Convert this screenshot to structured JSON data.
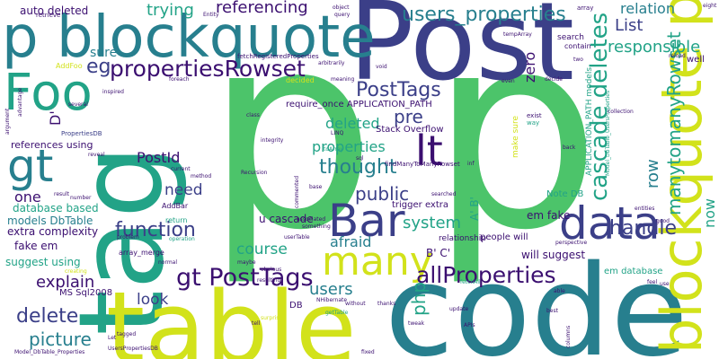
{
  "words": [
    {
      "text": "p",
      "color": "#4cc46a"
    },
    {
      "text": "p",
      "color": "#4cc46a"
    },
    {
      "text": "Post",
      "color": "#3b3f88"
    },
    {
      "text": "tag",
      "color": "#22a387"
    },
    {
      "text": "code",
      "color": "#277f8e"
    },
    {
      "text": "table",
      "color": "#d2e21b"
    },
    {
      "text": "blockquote p",
      "color": "#d2e21b"
    },
    {
      "text": "p blockquote",
      "color": "#277f8e"
    },
    {
      "text": "Foo",
      "color": "#22a387"
    },
    {
      "text": "gt",
      "color": "#277f8e"
    },
    {
      "text": "Bar",
      "color": "#3b3f88"
    },
    {
      "text": "data",
      "color": "#3b3f88"
    },
    {
      "text": "many",
      "color": "#d2e21b"
    },
    {
      "text": "lt",
      "color": "#3b0f70"
    },
    {
      "text": "gt PostTags",
      "color": "#3b0f70"
    },
    {
      "text": "propertiesRowset",
      "color": "#3b0f70"
    },
    {
      "text": "cascade deletes",
      "color": "#22a387"
    },
    {
      "text": "allProperties",
      "color": "#3b0f70"
    },
    {
      "text": "users_properties",
      "color": "#277f8e"
    },
    {
      "text": "PostTags",
      "color": "#3b3f88"
    },
    {
      "text": "thought",
      "color": "#277f8e"
    },
    {
      "text": "function",
      "color": "#3b3f88"
    },
    {
      "text": "delete",
      "color": "#3b3f88"
    },
    {
      "text": "picture",
      "color": "#277f8e"
    },
    {
      "text": "handle",
      "color": "#3b3f88"
    },
    {
      "text": "responsible",
      "color": "#22a387"
    },
    {
      "text": "manytomanyRowset",
      "color": "#22a387"
    },
    {
      "text": "system",
      "color": "#22a387"
    },
    {
      "text": "public",
      "color": "#3b3f88"
    },
    {
      "text": "pre",
      "color": "#3b3f88"
    },
    {
      "text": "referencing",
      "color": "#3b0f70"
    },
    {
      "text": "trying",
      "color": "#22a387"
    },
    {
      "text": "need",
      "color": "#3b3f88"
    },
    {
      "text": "course",
      "color": "#22a387"
    },
    {
      "text": "afraid",
      "color": "#277f8e"
    },
    {
      "text": "explain",
      "color": "#3b0f70"
    },
    {
      "text": "look",
      "color": "#3b3f88"
    },
    {
      "text": "users",
      "color": "#277f8e"
    },
    {
      "text": "List",
      "color": "#3b3f88"
    },
    {
      "text": "relation",
      "color": "#277f8e"
    },
    {
      "text": "deleted",
      "color": "#22a387"
    },
    {
      "text": "properties",
      "color": "#22a387"
    },
    {
      "text": "eg",
      "color": "#3b3f88"
    },
    {
      "text": "sure",
      "color": "#277f8e"
    },
    {
      "text": "PostId",
      "color": "#3b0f70"
    },
    {
      "text": "row",
      "color": "#277f8e"
    },
    {
      "text": "one",
      "color": "#3b0f70"
    },
    {
      "text": "now",
      "color": "#22a387"
    },
    {
      "text": "php",
      "color": "#22a387"
    },
    {
      "text": "zero",
      "color": "#3b0f70"
    },
    {
      "text": "u cascade",
      "color": "#3b0f70"
    },
    {
      "text": "A' B'",
      "color": "#22a387"
    },
    {
      "text": "B' C'",
      "color": "#3b0f70"
    },
    {
      "text": "will suggest",
      "color": "#3b0f70"
    },
    {
      "text": "em fake",
      "color": "#3b0f70"
    },
    {
      "text": "D'",
      "color": "#3b0f70"
    },
    {
      "text": "auto deleted",
      "color": "#3b0f70"
    },
    {
      "text": "references using",
      "color": "#3b0f70"
    },
    {
      "text": "models DbTable",
      "color": "#277f8e"
    },
    {
      "text": "extra complexity",
      "color": "#3b0f70"
    },
    {
      "text": "database based",
      "color": "#22a387"
    },
    {
      "text": "fake em",
      "color": "#3b0f70"
    },
    {
      "text": "suggest using",
      "color": "#22a387"
    },
    {
      "text": "MS Sql2008",
      "color": "#3b0f70"
    },
    {
      "text": "require_once APPLICATION_PATH",
      "color": "#3b0f70"
    },
    {
      "text": "Stack Overflow",
      "color": "#3b0f70"
    },
    {
      "text": "trigger extra",
      "color": "#3b0f70"
    },
    {
      "text": "people will",
      "color": "#3b0f70"
    },
    {
      "text": "em database",
      "color": "#22a387"
    },
    {
      "text": "DB",
      "color": "#3b0f70"
    },
    {
      "text": "Note DB",
      "color": "#22a387"
    },
    {
      "text": "relationship",
      "color": "#3b0f70"
    },
    {
      "text": "APPLICATION_PATH models",
      "color": "#22a387"
    },
    {
      "text": "make sure",
      "color": "#d2e21b"
    },
    {
      "text": "search",
      "color": "#3b0f70"
    },
    {
      "text": "contain",
      "color": "#3b0f70"
    },
    {
      "text": "well",
      "color": "#3b0f70"
    },
    {
      "text": "AddBar",
      "color": "#3b0f70"
    },
    {
      "text": "return",
      "color": "#22a387"
    },
    {
      "text": "array_merge",
      "color": "#3b0f70"
    },
    {
      "text": "PropertiesDB",
      "color": "#3b3f88"
    },
    {
      "text": "retrieve",
      "color": "#3b0f70"
    },
    {
      "text": "AddFoo",
      "color": "#d2e21b"
    },
    {
      "text": "foreach",
      "color": "#3b0f70"
    },
    {
      "text": "fetchRegisteredProperties",
      "color": "#3b0f70"
    },
    {
      "text": "tempArray",
      "color": "#3b0f70"
    },
    {
      "text": "findManyToManyRowset",
      "color": "#3b0f70"
    },
    {
      "text": "toArray",
      "color": "#22a387"
    },
    {
      "text": "Recursion",
      "color": "#3b0f70"
    },
    {
      "text": "userTable",
      "color": "#3b0f70"
    },
    {
      "text": "getTable",
      "color": "#22a387"
    },
    {
      "text": "NHibernate",
      "color": "#3b0f70"
    },
    {
      "text": "fetchAll",
      "color": "#22a387"
    },
    {
      "text": "Model_DbTable_UsersProperties",
      "color": "#22a387"
    },
    {
      "text": "Model_DbTable_Properties",
      "color": "#3b0f70"
    },
    {
      "text": "UsersPropertiesDB",
      "color": "#3b0f70"
    },
    {
      "text": "entities",
      "color": "#3b0f70"
    },
    {
      "text": "LINQ",
      "color": "#3b0f70"
    },
    {
      "text": "decided",
      "color": "#d2e21b"
    },
    {
      "text": "void",
      "color": "#3b0f70"
    },
    {
      "text": "Entity",
      "color": "#3b0f70"
    },
    {
      "text": "exist",
      "color": "#3b0f70"
    },
    {
      "text": "way",
      "color": "#22a387"
    },
    {
      "text": "without",
      "color": "#3b0f70"
    },
    {
      "text": "surprise",
      "color": "#d2e21b"
    },
    {
      "text": "update",
      "color": "#3b0f70"
    },
    {
      "text": "inf",
      "color": "#3b0f70"
    },
    {
      "text": "arbitrarily",
      "color": "#3b0f70"
    },
    {
      "text": "class",
      "color": "#3b0f70"
    },
    {
      "text": "integrity",
      "color": "#3b0f70"
    },
    {
      "text": "perspective",
      "color": "#3b0f70"
    },
    {
      "text": "number",
      "color": "#3b0f70"
    },
    {
      "text": "result",
      "color": "#3b0f70"
    },
    {
      "text": "problem",
      "color": "#3b0f70"
    },
    {
      "text": "operation",
      "color": "#22a387"
    },
    {
      "text": "creating",
      "color": "#d2e21b"
    },
    {
      "text": "normal",
      "color": "#3b0f70"
    },
    {
      "text": "tell",
      "color": "#3b0f70"
    },
    {
      "text": "maybe",
      "color": "#3b0f70"
    },
    {
      "text": "thanks",
      "color": "#3b0f70"
    },
    {
      "text": "tweak",
      "color": "#3b0f70"
    },
    {
      "text": "best",
      "color": "#3b0f70"
    },
    {
      "text": "APIs",
      "color": "#3b0f70"
    },
    {
      "text": "fixed",
      "color": "#3b0f70"
    },
    {
      "text": "tagged",
      "color": "#3b0f70"
    },
    {
      "text": "Let",
      "color": "#3b0f70"
    },
    {
      "text": "reveal",
      "color": "#3b0f70"
    },
    {
      "text": "several",
      "color": "#3b0f70"
    },
    {
      "text": "inspired",
      "color": "#3b0f70"
    },
    {
      "text": "method",
      "color": "#3b0f70"
    },
    {
      "text": "current",
      "color": "#3b0f70"
    },
    {
      "text": "object",
      "color": "#3b0f70"
    },
    {
      "text": "query",
      "color": "#3b0f70"
    },
    {
      "text": "array",
      "color": "#3b0f70"
    },
    {
      "text": "eight",
      "color": "#3b0f70"
    },
    {
      "text": "reload",
      "color": "#3b0f70"
    },
    {
      "text": "good",
      "color": "#3b0f70"
    },
    {
      "text": "feel",
      "color": "#3b0f70"
    },
    {
      "text": "use",
      "color": "#3b0f70"
    },
    {
      "text": "able",
      "color": "#3b0f70"
    },
    {
      "text": "even",
      "color": "#3b0f70"
    },
    {
      "text": "back",
      "color": "#3b0f70"
    },
    {
      "text": "two",
      "color": "#3b0f70"
    },
    {
      "text": "collection",
      "color": "#3b0f70"
    },
    {
      "text": "argument",
      "color": "#3b0f70"
    },
    {
      "text": "advantage",
      "color": "#3b0f70"
    },
    {
      "text": "searched",
      "color": "#3b0f70"
    },
    {
      "text": "sql",
      "color": "#3b0f70"
    },
    {
      "text": "commented",
      "color": "#3b0f70"
    },
    {
      "text": "base",
      "color": "#3b0f70"
    },
    {
      "text": "associated",
      "color": "#3b0f70"
    },
    {
      "text": "something",
      "color": "#3b0f70"
    },
    {
      "text": "meaning",
      "color": "#3b0f70"
    },
    {
      "text": "decide",
      "color": "#3b0f70"
    },
    {
      "text": "columns",
      "color": "#3b0f70"
    },
    {
      "text": "resulting",
      "color": "#3b0f70"
    },
    {
      "text": "obvious",
      "color": "#3b0f70"
    }
  ]
}
